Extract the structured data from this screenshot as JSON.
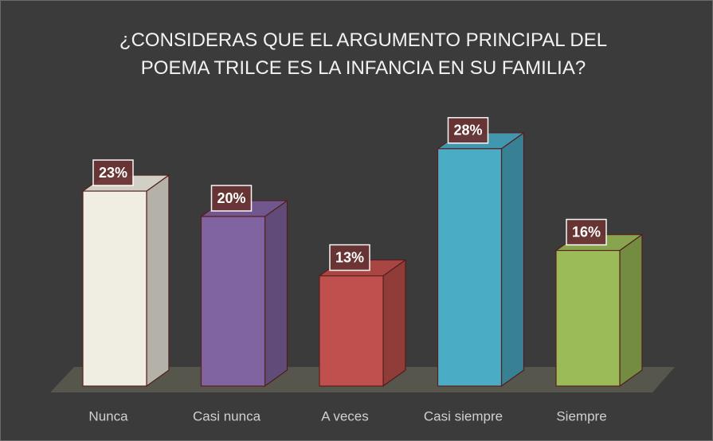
{
  "chart_data": {
    "type": "bar3d",
    "title": "¿CONSIDERAS QUE EL ARGUMENTO PRINCIPAL DEL POEMA TRILCE ES LA INFANCIA EN SU FAMILIA?",
    "categories": [
      "Nunca",
      "Casi nunca",
      "A veces",
      "Casi siempre",
      "Siempre"
    ],
    "values": [
      23,
      20,
      13,
      28,
      16
    ],
    "value_labels": [
      "23%",
      "20%",
      "13%",
      "28%",
      "16%"
    ],
    "colors": [
      "#f0ede2",
      "#8064a2",
      "#c0504d",
      "#4bacc6",
      "#9bbb59"
    ]
  }
}
